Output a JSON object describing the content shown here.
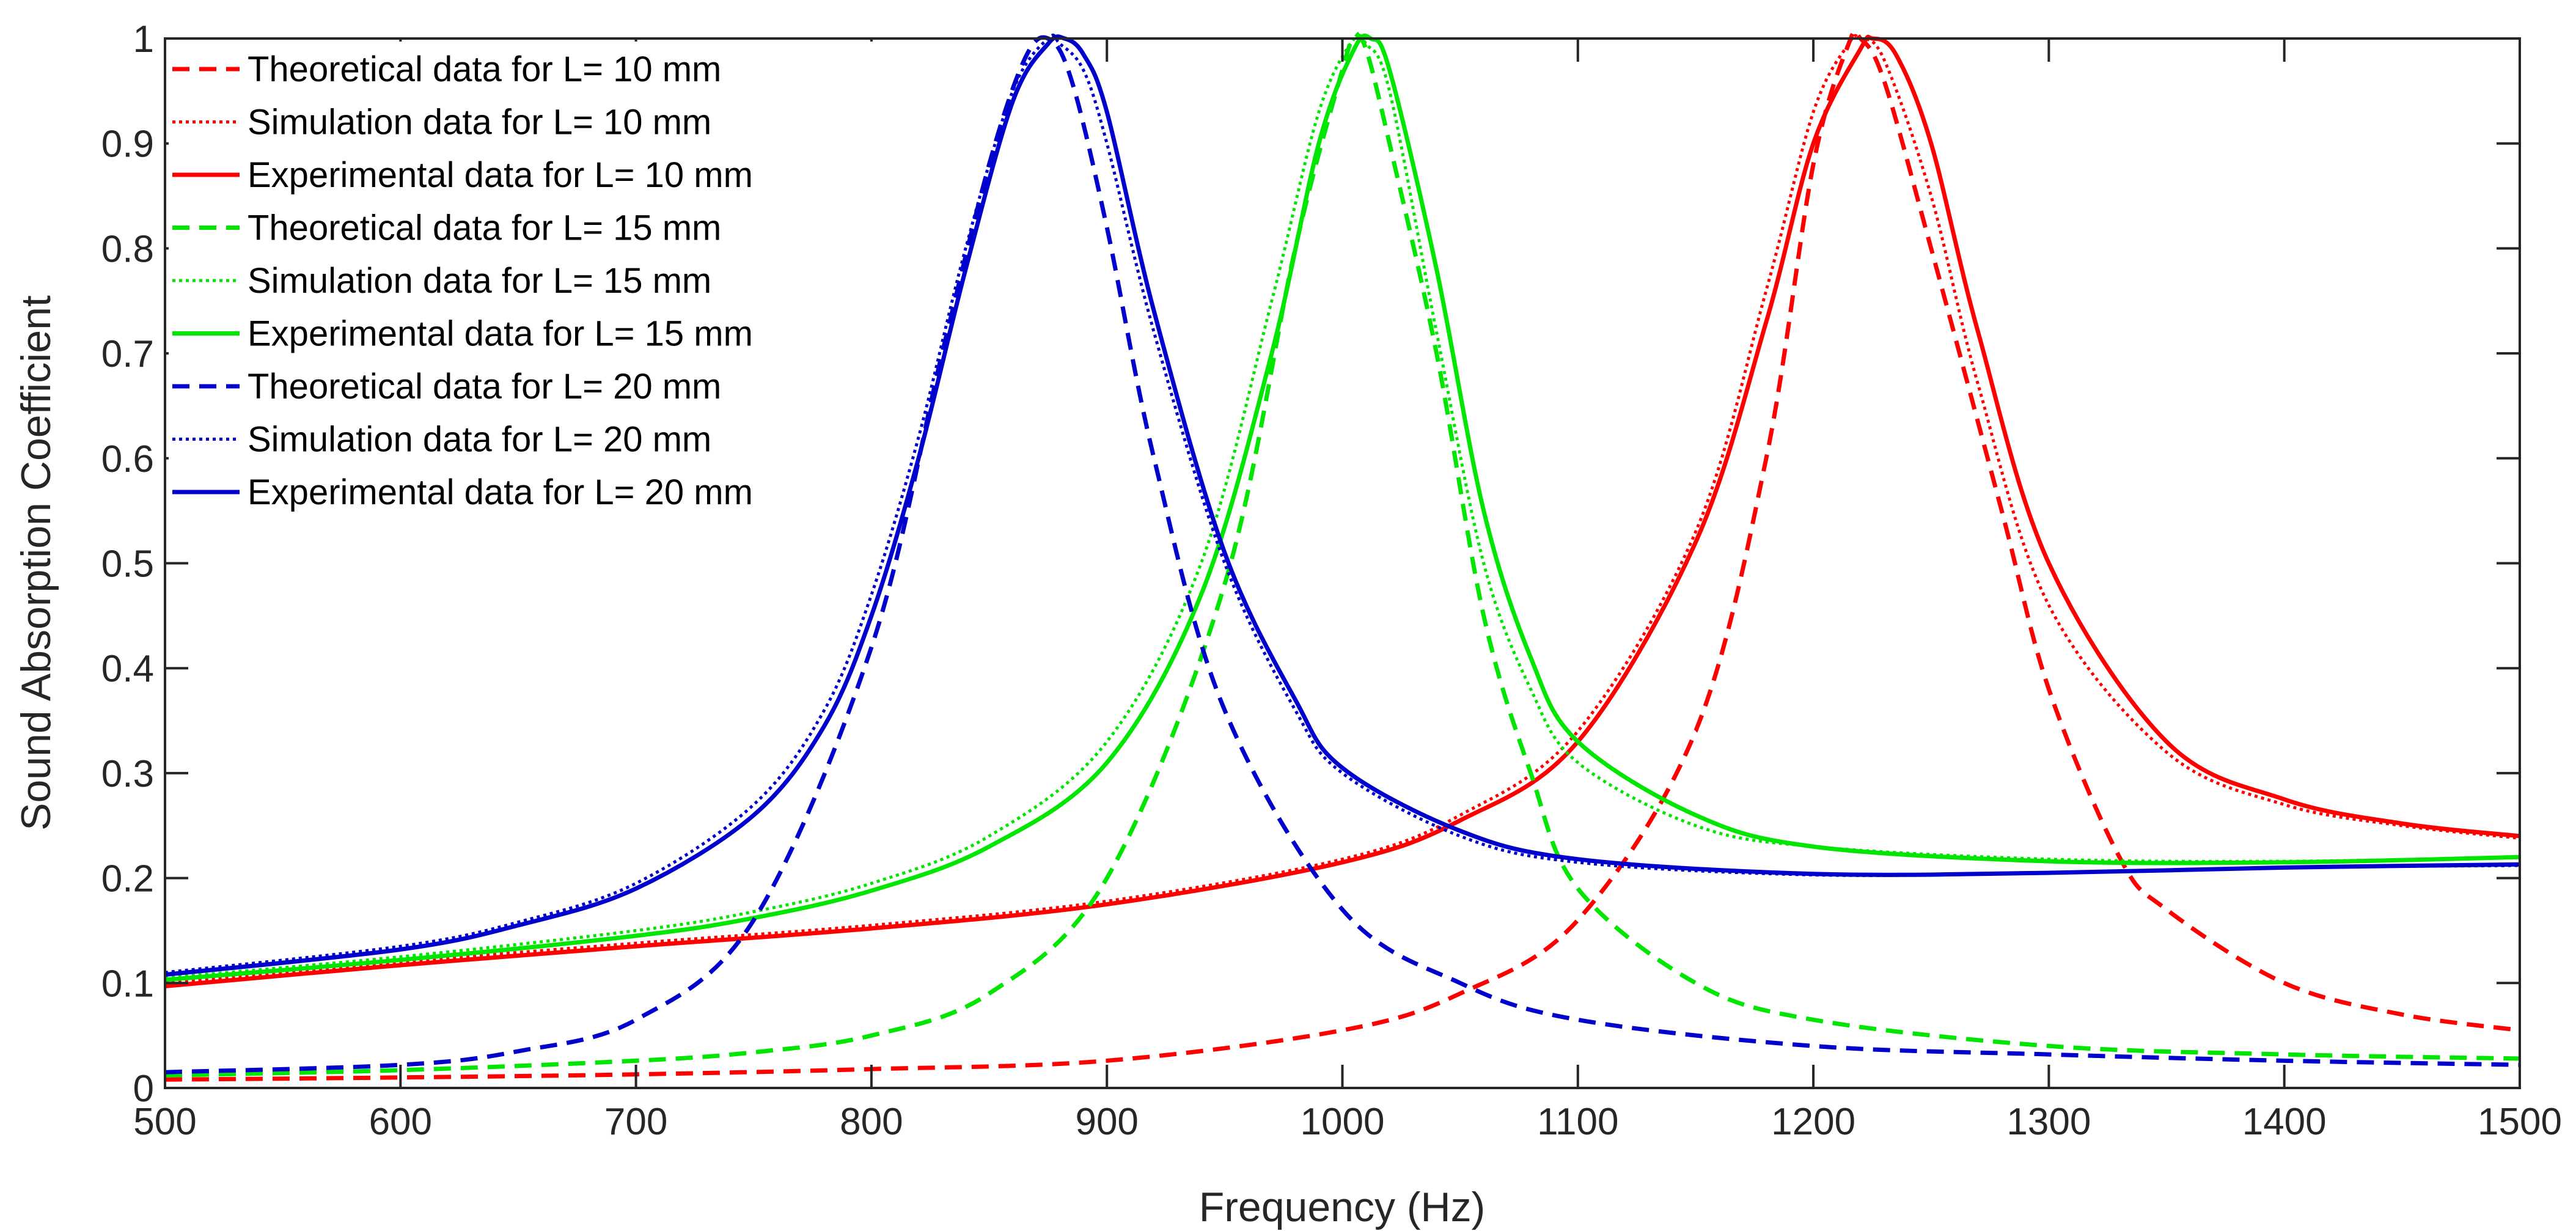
{
  "chart_data": {
    "type": "line",
    "title": "",
    "xlabel": "Frequency (Hz)",
    "ylabel": "Sound Absorption Coefficient",
    "xlim": [
      500,
      1500
    ],
    "ylim": [
      0,
      1
    ],
    "xticks": [
      500,
      600,
      700,
      800,
      900,
      1000,
      1100,
      1200,
      1300,
      1400,
      1500
    ],
    "yticks": [
      0,
      0.1,
      0.2,
      0.3,
      0.4,
      0.5,
      0.6,
      0.7,
      0.8,
      0.9,
      1
    ],
    "ytick_labels": [
      "0",
      "0.1",
      "0.2",
      "0.3",
      "0.4",
      "0.5",
      "0.6",
      "0.7",
      "0.8",
      "0.9",
      "1"
    ],
    "grid": false,
    "legend_position": "top-left",
    "series": [
      {
        "name": "Theoretical data for L= 10 mm",
        "color": "#ff0000",
        "style": "dashed",
        "x": [
          500,
          600,
          700,
          800,
          900,
          1000,
          1050,
          1100,
          1150,
          1180,
          1200,
          1215,
          1220,
          1230,
          1250,
          1280,
          1300,
          1330,
          1350,
          1400,
          1450,
          1500
        ],
        "y": [
          0.008,
          0.01,
          0.013,
          0.018,
          0.026,
          0.055,
          0.09,
          0.16,
          0.34,
          0.6,
          0.88,
          0.995,
          1.0,
          0.96,
          0.8,
          0.55,
          0.38,
          0.22,
          0.17,
          0.1,
          0.07,
          0.055
        ]
      },
      {
        "name": "Simulation data for L= 10 mm",
        "color": "#ff0000",
        "style": "dotted",
        "x": [
          500,
          600,
          700,
          800,
          900,
          1000,
          1050,
          1100,
          1150,
          1180,
          1200,
          1215,
          1220,
          1230,
          1250,
          1270,
          1300,
          1350,
          1400,
          1450,
          1500
        ],
        "y": [
          0.1,
          0.12,
          0.138,
          0.155,
          0.178,
          0.218,
          0.26,
          0.34,
          0.53,
          0.76,
          0.93,
          0.995,
          1.0,
          0.98,
          0.85,
          0.67,
          0.46,
          0.32,
          0.27,
          0.25,
          0.238
        ]
      },
      {
        "name": "Experimental data for L= 10 mm",
        "color": "#ff0000",
        "style": "solid",
        "x": [
          500,
          600,
          700,
          800,
          900,
          1000,
          1050,
          1100,
          1150,
          1180,
          1200,
          1220,
          1225,
          1235,
          1250,
          1270,
          1300,
          1350,
          1400,
          1450,
          1500
        ],
        "y": [
          0.097,
          0.117,
          0.135,
          0.152,
          0.175,
          0.215,
          0.255,
          0.33,
          0.52,
          0.73,
          0.9,
          0.99,
          1.0,
          0.985,
          0.9,
          0.72,
          0.5,
          0.33,
          0.275,
          0.252,
          0.24
        ]
      },
      {
        "name": "Theoretical data for L= 15 mm",
        "color": "#00e600",
        "style": "dashed",
        "x": [
          500,
          600,
          700,
          750,
          800,
          850,
          900,
          950,
          980,
          1000,
          1005,
          1010,
          1020,
          1040,
          1060,
          1080,
          1100,
          1150,
          1200,
          1300,
          1400,
          1500
        ],
        "y": [
          0.012,
          0.017,
          0.026,
          0.034,
          0.05,
          0.09,
          0.2,
          0.48,
          0.8,
          0.97,
          1.0,
          0.99,
          0.9,
          0.7,
          0.45,
          0.3,
          0.19,
          0.1,
          0.065,
          0.04,
          0.032,
          0.028
        ]
      },
      {
        "name": "Simulation data for L= 15 mm",
        "color": "#00e600",
        "style": "dotted",
        "x": [
          500,
          600,
          700,
          750,
          800,
          850,
          900,
          940,
          970,
          990,
          1005,
          1010,
          1020,
          1040,
          1060,
          1080,
          1100,
          1150,
          1200,
          1300,
          1400,
          1500
        ],
        "y": [
          0.105,
          0.125,
          0.15,
          0.168,
          0.195,
          0.24,
          0.33,
          0.5,
          0.75,
          0.93,
          1.0,
          0.995,
          0.95,
          0.72,
          0.5,
          0.38,
          0.31,
          0.25,
          0.23,
          0.218,
          0.216,
          0.22
        ]
      },
      {
        "name": "Experimental data for L= 15 mm",
        "color": "#00e600",
        "style": "solid",
        "x": [
          500,
          600,
          700,
          750,
          800,
          850,
          900,
          940,
          970,
          990,
          1005,
          1012,
          1020,
          1040,
          1060,
          1080,
          1100,
          1150,
          1200,
          1300,
          1400,
          1500
        ],
        "y": [
          0.103,
          0.122,
          0.145,
          0.162,
          0.188,
          0.23,
          0.31,
          0.47,
          0.7,
          0.9,
          0.99,
          1.0,
          0.97,
          0.78,
          0.55,
          0.41,
          0.33,
          0.26,
          0.23,
          0.216,
          0.215,
          0.22
        ]
      },
      {
        "name": "Theoretical data for L= 20 mm",
        "color": "#0000cd",
        "style": "dashed",
        "x": [
          500,
          600,
          650,
          700,
          750,
          800,
          830,
          850,
          865,
          875,
          885,
          900,
          920,
          950,
          1000,
          1050,
          1100,
          1200,
          1300,
          1400,
          1500
        ],
        "y": [
          0.015,
          0.022,
          0.035,
          0.065,
          0.16,
          0.42,
          0.7,
          0.88,
          0.98,
          1.0,
          0.96,
          0.82,
          0.6,
          0.36,
          0.17,
          0.1,
          0.065,
          0.04,
          0.032,
          0.026,
          0.022
        ]
      },
      {
        "name": "Simulation data for L= 20 mm",
        "color": "#0000cd",
        "style": "dotted",
        "x": [
          500,
          600,
          650,
          700,
          750,
          780,
          800,
          820,
          840,
          860,
          875,
          880,
          890,
          900,
          920,
          950,
          980,
          1000,
          1050,
          1100,
          1200,
          1300,
          1400,
          1500
        ],
        "y": [
          0.11,
          0.135,
          0.158,
          0.195,
          0.27,
          0.36,
          0.47,
          0.62,
          0.8,
          0.95,
          1.0,
          0.995,
          0.97,
          0.9,
          0.72,
          0.5,
          0.36,
          0.3,
          0.24,
          0.215,
          0.203,
          0.205,
          0.21,
          0.212
        ]
      },
      {
        "name": "Experimental data for L= 20 mm",
        "color": "#0000cd",
        "style": "solid",
        "x": [
          500,
          600,
          650,
          700,
          750,
          780,
          800,
          820,
          840,
          860,
          875,
          882,
          890,
          900,
          920,
          950,
          980,
          1000,
          1050,
          1100,
          1200,
          1300,
          1400,
          1500
        ],
        "y": [
          0.108,
          0.132,
          0.155,
          0.19,
          0.26,
          0.345,
          0.45,
          0.6,
          0.78,
          0.94,
          0.995,
          1.0,
          0.985,
          0.93,
          0.74,
          0.51,
          0.37,
          0.305,
          0.245,
          0.218,
          0.204,
          0.205,
          0.21,
          0.213
        ]
      }
    ]
  }
}
